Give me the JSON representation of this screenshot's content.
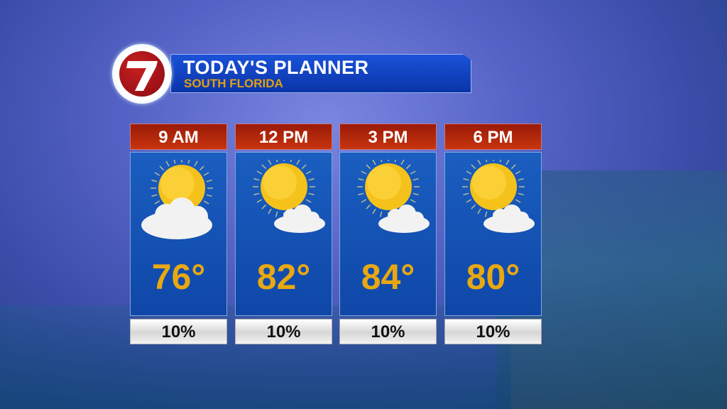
{
  "header": {
    "title": "TODAY'S PLANNER",
    "subtitle": "SOUTH FLORIDA",
    "logo_text": "7"
  },
  "colors": {
    "header_red": "#b02a0c",
    "panel_blue": "#1553b4",
    "temp_gold": "#e8a812",
    "subtitle_gold": "#e0a012"
  },
  "periods": [
    {
      "time": "9 AM",
      "temp": "76°",
      "precip": "10%",
      "icon": "partly-cloudy-icon"
    },
    {
      "time": "12 PM",
      "temp": "82°",
      "precip": "10%",
      "icon": "mostly-sunny-icon"
    },
    {
      "time": "3 PM",
      "temp": "84°",
      "precip": "10%",
      "icon": "mostly-sunny-icon"
    },
    {
      "time": "6 PM",
      "temp": "80°",
      "precip": "10%",
      "icon": "mostly-sunny-icon"
    }
  ]
}
